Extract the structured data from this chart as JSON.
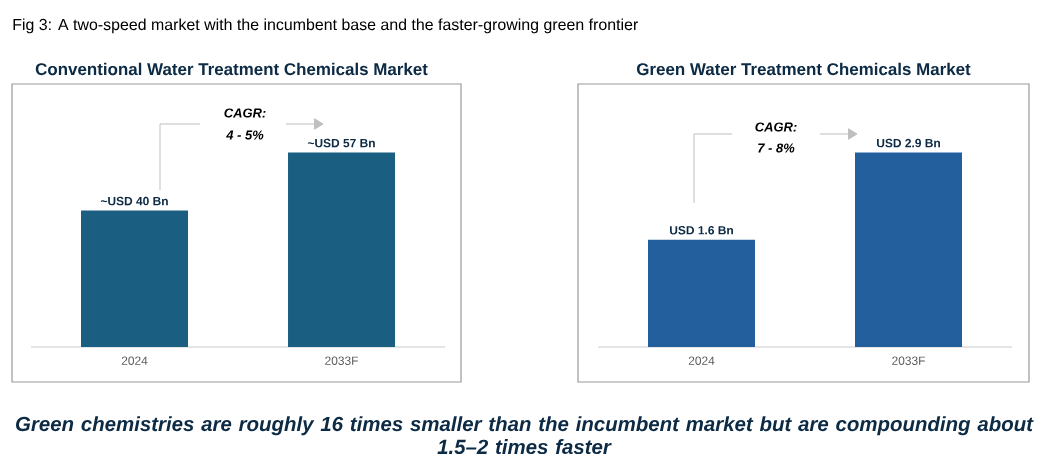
{
  "chart_data": [
    {
      "type": "bar",
      "title": "Conventional Water Treatment Chemicals Market",
      "categories": [
        "2024",
        "2033F"
      ],
      "values": [
        40,
        57
      ],
      "color": "#1a5f82",
      "value_labels": [
        "~USD 40 Bn",
        "~USD 57 Bn"
      ],
      "tick_labels": "x",
      "annotations": [
        "Fig 3: A two-speed market with the incumbent base and the faster-growing green frontier",
        "CAGR:",
        "4 - 5%"
      ]
    },
    {
      "type": "bar",
      "title": "Green Water Treatment Chemicals Market",
      "categories": [
        "2024",
        "2033F"
      ],
      "values": [
        1.6,
        2.9
      ],
      "color": "#235f9c",
      "value_labels": [
        "USD 1.6 Bn",
        "USD 2.9 Bn"
      ],
      "tick_labels": "x",
      "annotations": [
        "CAGR:",
        "7 - 8%",
        "Green chemistries are roughly 16 times smaller than the incumbent market but are compounding about 1.5–2 times faster"
      ]
    }
  ]
}
